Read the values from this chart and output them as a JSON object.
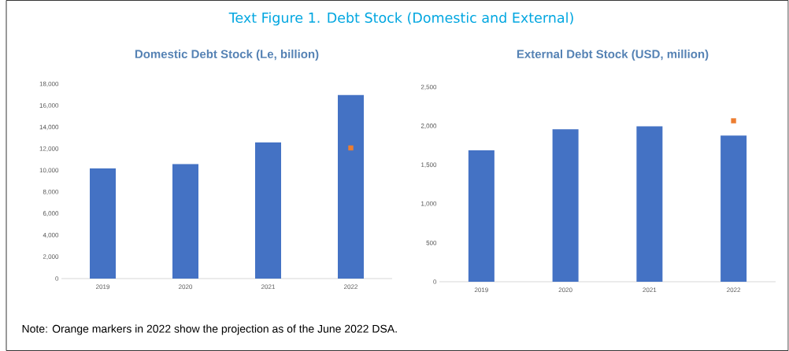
{
  "chart_data": [
    {
      "type": "bar",
      "title": "Domestic Debt Stock (Le, billion)",
      "categories": [
        "2019",
        "2020",
        "2021",
        "2022"
      ],
      "series": [
        {
          "color": "#4472c4",
          "values": [
            10200,
            10600,
            12600,
            17000
          ]
        },
        {
          "type": "scatter",
          "color": "#ed7d31",
          "marker": "square",
          "values": [
            null,
            null,
            null,
            12100
          ]
        }
      ],
      "ylim": [
        0,
        18000
      ],
      "yticks": [
        {
          "value": 0,
          "label": "0"
        },
        {
          "value": 2000,
          "label": "2,000"
        },
        {
          "value": 4000,
          "label": "4,000"
        },
        {
          "value": 6000,
          "label": "6,000"
        },
        {
          "value": 8000,
          "label": "8,000"
        },
        {
          "value": 10000,
          "label": "10,000"
        },
        {
          "value": 12000,
          "label": "12,000"
        },
        {
          "value": 14000,
          "label": "14,000"
        },
        {
          "value": 16000,
          "label": "16,000"
        },
        {
          "value": 18000,
          "label": "18,000"
        }
      ],
      "annotations": [
        "Text Figure 1. Debt Stock (Domestic and External)",
        "Note: Orange markers in 2022 show the projection as of the June 2022 DSA."
      ]
    },
    {
      "type": "bar",
      "title": "External Debt Stock (USD, million)",
      "categories": [
        "2019",
        "2020",
        "2021",
        "2022"
      ],
      "series": [
        {
          "color": "#4472c4",
          "values": [
            1690,
            1960,
            2000,
            1880
          ]
        },
        {
          "type": "scatter",
          "color": "#ed7d31",
          "marker": "square",
          "values": [
            null,
            null,
            null,
            2070
          ]
        }
      ],
      "ylim": [
        0,
        2500
      ],
      "yticks": [
        {
          "value": 0,
          "label": "0"
        },
        {
          "value": 500,
          "label": "500"
        },
        {
          "value": 1000,
          "label": "1,000"
        },
        {
          "value": 1500,
          "label": "1,500"
        },
        {
          "value": 2000,
          "label": "2,000"
        },
        {
          "value": 2500,
          "label": "2,500"
        }
      ]
    }
  ]
}
